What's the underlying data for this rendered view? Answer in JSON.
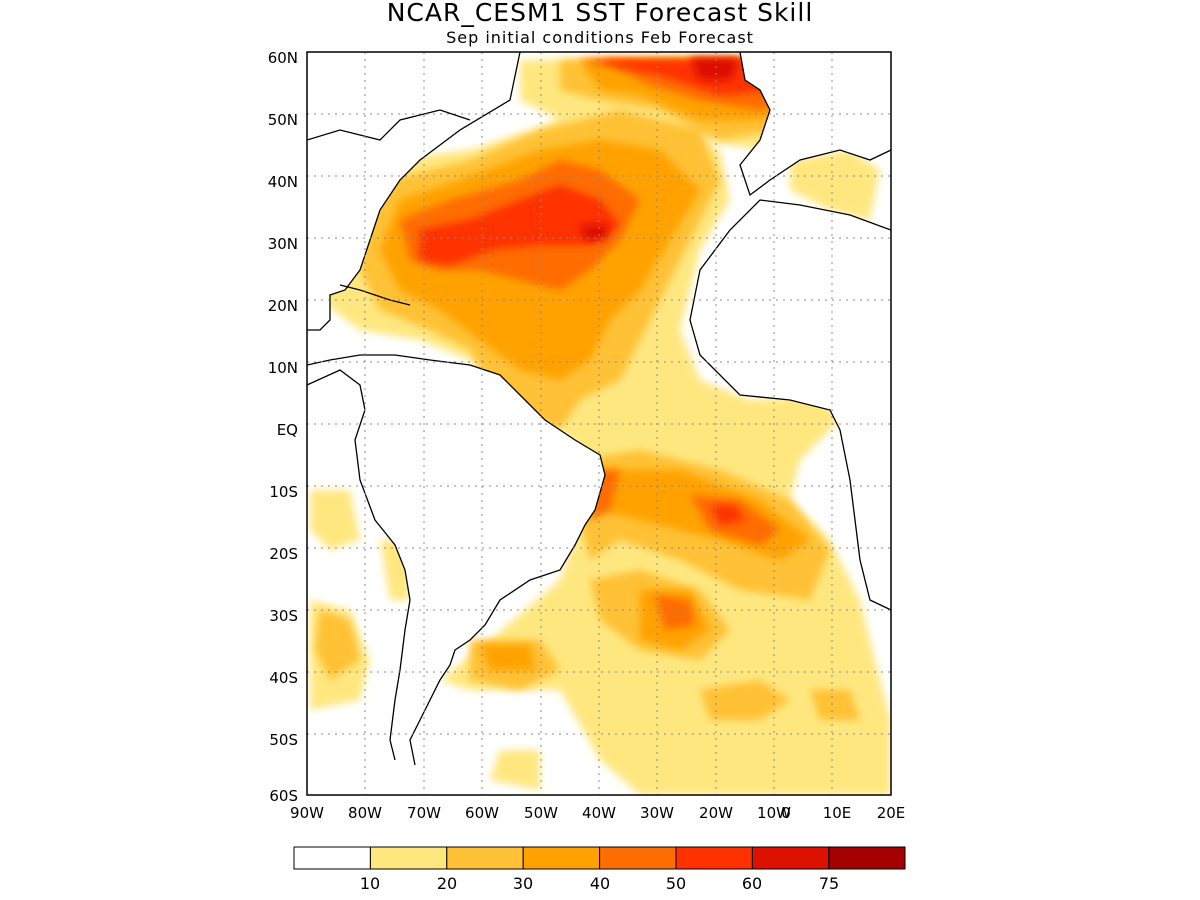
{
  "title": "NCAR_CESM1 SST Forecast Skill",
  "subtitle": "Sep initial conditions  Feb Forecast",
  "lat_labels": [
    "60N",
    "50N",
    "40N",
    "30N",
    "20N",
    "10N",
    "EQ",
    "10S",
    "20S",
    "30S",
    "40S",
    "50S",
    "60S"
  ],
  "lon_labels": [
    "90W",
    "80W",
    "70W",
    "60W",
    "50W",
    "40W",
    "30W",
    "20W",
    "10W",
    "0",
    "10E",
    "20E"
  ],
  "colorbar": {
    "colors": [
      "#ffffff",
      "#ffe780",
      "#ffc136",
      "#ffa200",
      "#ff6c00",
      "#ff3100",
      "#dd1100",
      "#a50000"
    ],
    "labels": [
      "10",
      "20",
      "30",
      "40",
      "50",
      "60",
      "75"
    ]
  },
  "land_color": "#ffffff",
  "coast_color": "#000000"
}
